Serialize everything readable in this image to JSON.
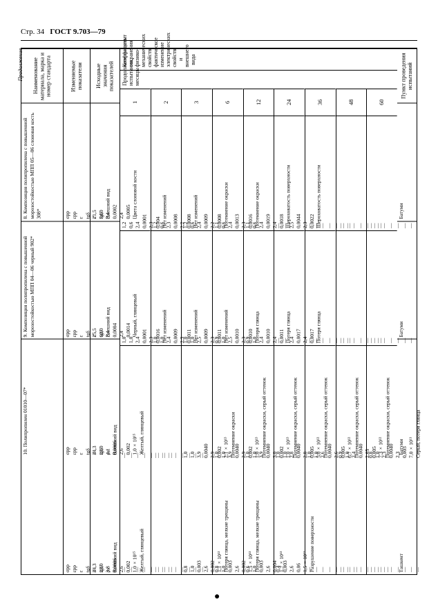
{
  "header": {
    "page": "Стр. 34",
    "gost": "ГОСТ 9.703—79",
    "continuation": "Продолжение"
  },
  "colHeaders": {
    "material": "Наименование материала, марка и номер стандарта",
    "indicators": "Изменяемые показатели",
    "initial": "Исходные значения показателей",
    "spanner": "Коэффициент сохранения физико-механических свойств, фактическое изменение электрических свойств и внешнего вида",
    "duration": "Продолжительность испытания, месяцы",
    "durations": [
      "1",
      "2",
      "3",
      "6",
      "12",
      "24",
      "36",
      "48",
      "60"
    ],
    "location": "Пункт проведения испытаний"
  },
  "indicatorLabels": [
    "σрр",
    "εрр",
    "ε",
    "tgδ",
    "ε'",
    "tgδ'",
    "Внешний вид"
  ],
  "rows": [
    {
      "name": "8. Композиция полипропилена с повышенной морозостойкостью МПП 05—06 слоновая кость 308*",
      "initial": [
        "21,5",
        "74,0",
        "2,4",
        "0,0002",
        "2,4",
        "0,0005",
        "Цвета слоновой кости"
      ],
      "d": {
        "1": [
          "1,2",
          "0,6",
          "2,4",
          "0,0001",
          "2,3",
          "0,004",
          "Нет изменений"
        ],
        "2": [
          "1,2",
          "0,6",
          "2,3",
          "0,0008",
          "2,2",
          "0,0008",
          "Нет изменений"
        ],
        "3": [
          "1,2",
          "0,6",
          "2,4",
          "0,0009",
          "2,2",
          "0,0008",
          "Потемнение окраски"
        ],
        "6": [
          "1,1",
          "0,6",
          "2,4",
          "0,0013",
          "2,3",
          "0,0016",
          "Потемнение окраски"
        ],
        "12": [
          "1,1",
          "0,6",
          "2,4",
          "0,0019",
          "2,4",
          "0,0018",
          "Шероховатость поверхности"
        ],
        "24": [
          "—",
          "—",
          "2,5",
          "0,0044",
          "2,3",
          "0,0022",
          "Шероховатость поверхности"
        ],
        "36": [
          "—",
          "—",
          "—",
          "—",
          "—",
          "—",
          "—"
        ],
        "48": [
          "—",
          "—",
          "—",
          "—",
          "—",
          "—",
          "—"
        ],
        "60": [
          "—",
          "—",
          "—",
          "—",
          "—",
          "—",
          "—"
        ]
      },
      "location": "Батуми"
    },
    {
      "name": "9. Композиция полипропилена с повышенной морозостойкостью МПП 04—06 черный 902*",
      "initial": [
        "25,5",
        "60,0",
        "2,4",
        "0,0004",
        "2,4",
        "0,0014",
        "Черный, глянцевый"
      ],
      "d": {
        "1": [
          "1,0",
          "1,0",
          "2,4",
          "0,0001",
          "2,3",
          "0,0016",
          "Нет изменений"
        ],
        "2": [
          "1,0",
          "1,0",
          "2,4",
          "0,0009",
          "2,3",
          "0,0011",
          "Нет изменений"
        ],
        "3": [
          "1,0",
          "1,0",
          "2,5",
          "0,0009",
          "2,3",
          "0,0011",
          "Нет изменений"
        ],
        "6": [
          "0,9",
          "1,0",
          "2,5",
          "0,0010",
          "2,3",
          "0,0010",
          "Потеря глянца"
        ],
        "12": [
          "0,9",
          "1,0",
          "2,4",
          "0,0010",
          "2,4",
          "0,0011",
          "Потеря глянца"
        ],
        "24": [
          "—",
          "—",
          "2,4",
          "0,0017",
          "2,4",
          "0,0017",
          "Потеря глянца"
        ],
        "36": [
          "—",
          "—",
          "—",
          "—",
          "—",
          "—",
          "—"
        ],
        "48": [
          "—",
          "—",
          "—",
          "—",
          "—",
          "—",
          "—"
        ],
        "60": [
          "—",
          "—",
          "—",
          "—",
          "—",
          "—",
          "—"
        ]
      },
      "location": "Батуми"
    },
    {
      "name": "10. Полипропилен 01010—07*",
      "initial": [
        "34,3",
        "23,0",
        "4,1",
        "0,0006",
        "2,6",
        "0,002",
        "1,0×10¹⁵",
        "Желтый, глянцевый"
      ],
      "ind": [
        "σрр",
        "εрр",
        "ε",
        "tgδ",
        "ε'",
        "tgδ'",
        "ρv",
        "Внешний вид"
      ],
      "d": {
        "1": [
          "—",
          "—",
          "—",
          "—",
          "—",
          "—",
          "—",
          "—"
        ],
        "2": [
          "—",
          "—",
          "—",
          "—",
          "—",
          "—",
          "—",
          "—"
        ],
        "3": [
          "1,0",
          "1,0",
          "3,9",
          "0,0040",
          "2,9",
          "0,002",
          "2,1×10¹³",
          "Потемнение окраски"
        ],
        "6": [
          "1,0",
          "1,0",
          "3,9",
          "0,0040",
          "2,9",
          "0,002",
          "1,0×10¹³",
          "Потемнение окраски, серый оттенок"
        ],
        "12": [
          "1,0",
          "1,0",
          "3,9",
          "0,0040",
          "3,0",
          "0,002",
          "1,0×10¹³",
          "Потемнение окраски, серый оттенок"
        ],
        "24": [
          "1,0",
          "1,0",
          "2,8",
          "0,0040",
          "2,8",
          "0,005",
          "5,0×10¹²",
          "Потемнение окраски, серый оттенок"
        ],
        "36": [
          "1,0",
          "1,0",
          "2,6",
          "0,0040",
          "2,6",
          "0,005",
          "6,7×10¹²",
          "Потемнение окраски, серый оттенок"
        ],
        "48": [
          "0,9",
          "1,0",
          "2,4",
          "0,0040",
          "2,65",
          "0,005",
          "7,3×10¹²",
          "Потемнение окраски, серый оттенок"
        ],
        "60": [
          "0,8",
          "1,0",
          "2,3",
          "0,0040",
          "2,3",
          "0,005",
          "7,0×10¹¹",
          "Серый, потеря глянца"
        ]
      },
      "location": "Батуми"
    },
    {
      "name": "",
      "initial": [
        "34,3",
        "23,0",
        "3,8",
        "0,0006",
        "2,6",
        "0,002",
        "1,0×10¹⁵",
        "Желтый, глянцевый"
      ],
      "ind": [
        "σрр",
        "εрр",
        "ε",
        "tgδ",
        "ε'",
        "tgδ'",
        "ρv",
        "Внешний вид"
      ],
      "d": {
        "1": [
          "—",
          "—",
          "—",
          "—",
          "—",
          "—",
          "—",
          "—"
        ],
        "2": [
          "—",
          "—",
          "—",
          "—",
          "—",
          "—",
          "—",
          "—"
        ],
        "3": [
          "0,8",
          "1,0",
          "0,003",
          "",
          "2,6",
          "0,002",
          "1,1×10¹³",
          "Потеря глянца, мелкие трещины"
        ],
        "6": [
          "0,8",
          "1,0",
          "0,003",
          "",
          "2,6",
          "0,002",
          "1,5×10¹³",
          "Потеря глянца, мелкие трещины"
        ],
        "12": [
          "0,6",
          "1,0",
          "0,003",
          "",
          "2,6",
          "0,004",
          "1,7×10¹³",
          ""
        ],
        "24": [
          "0,4",
          "",
          "0,003",
          "",
          "2,6",
          "0,06",
          "1,5×10¹³",
          "Разрушение поверхности"
        ],
        "36": [
          "—",
          "—",
          "—",
          "—",
          "—",
          "—",
          "—",
          "—"
        ],
        "48": [
          "—",
          "—",
          "—",
          "—",
          "—",
          "—",
          "—",
          "—"
        ],
        "60": [
          "—",
          "—",
          "—",
          "—",
          "—",
          "—",
          "—",
          "—"
        ]
      },
      "location": "Ташкент"
    }
  ]
}
